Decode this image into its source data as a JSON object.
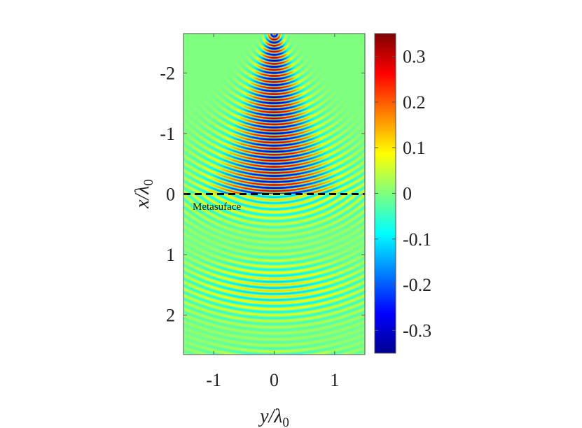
{
  "chart_data": {
    "type": "heatmap",
    "title": "",
    "xlabel": {
      "base": "y/λ",
      "sub": "0"
    },
    "ylabel": {
      "base": "x/λ",
      "sub": "0"
    },
    "xlim": [
      -1.5,
      1.5
    ],
    "ylim": [
      -2.65,
      2.65
    ],
    "y_axis_reversed": true,
    "x_ticks": [
      {
        "value": -1,
        "label": "-1"
      },
      {
        "value": 0,
        "label": "0"
      },
      {
        "value": 1,
        "label": "1"
      }
    ],
    "y_ticks": [
      {
        "value": -2,
        "label": "-2"
      },
      {
        "value": -1,
        "label": "-1"
      },
      {
        "value": 0,
        "label": "0"
      },
      {
        "value": 1,
        "label": "1"
      },
      {
        "value": 2,
        "label": "2"
      }
    ],
    "colormap": "jet",
    "clim": [
      -0.35,
      0.35
    ],
    "colorbar_ticks": [
      {
        "value": 0.3,
        "label": "0.3"
      },
      {
        "value": 0.2,
        "label": "0.2"
      },
      {
        "value": 0.1,
        "label": "0.1"
      },
      {
        "value": 0,
        "label": "0"
      },
      {
        "value": -0.1,
        "label": "-0.1"
      },
      {
        "value": -0.2,
        "label": "-0.2"
      },
      {
        "value": -0.3,
        "label": "-0.3"
      }
    ],
    "metasurface_line": {
      "x": 0,
      "style": "dashed",
      "color": "#000000"
    },
    "annotations": [
      {
        "text": "Metasuface",
        "x": -1.5,
        "y": 0.2
      }
    ],
    "field_pattern": {
      "description_of_values": "wave crests spaced about 0.1 wavelength in x; strong focused lobe above the metasurface converging toward x=-2.6, weak transmitted arcs below",
      "crest_period": 0.1,
      "upper_peak_amplitude": 0.35,
      "lower_peak_amplitude": 0.13
    }
  }
}
